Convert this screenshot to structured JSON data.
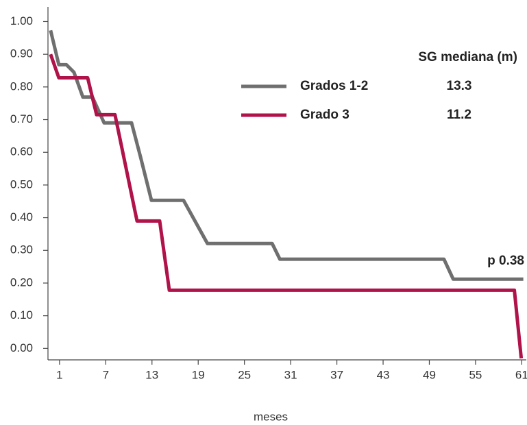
{
  "chart_data": {
    "type": "line",
    "x_label": "meses",
    "legend_title": "SG mediana (m)",
    "annotation": "p 0.38",
    "xlim": [
      -0.5,
      61.5
    ],
    "ylim": [
      -0.035,
      1.045
    ],
    "xticks": [
      1,
      7,
      13,
      19,
      25,
      31,
      37,
      43,
      49,
      55,
      61
    ],
    "yticks": [
      {
        "value": 1.0,
        "label": "1.00"
      },
      {
        "value": 0.9,
        "label": "0.90"
      },
      {
        "value": 0.8,
        "label": "0.80"
      },
      {
        "value": 0.7,
        "label": "0.70"
      },
      {
        "value": 0.6,
        "label": "0.60"
      },
      {
        "value": 0.5,
        "label": "0.50"
      },
      {
        "value": 0.4,
        "label": "0.40"
      },
      {
        "value": 0.3,
        "label": "0.30"
      },
      {
        "value": 0.2,
        "label": "0.20"
      },
      {
        "value": 0.1,
        "label": "0.10"
      },
      {
        "value": 0,
        "label": "0.00"
      }
    ],
    "series": [
      {
        "name": "Grados 1-2",
        "color": "#6f6f6f",
        "median": 13.3,
        "x": [
          -0.16,
          0.91,
          1.89,
          2.87,
          4.03,
          5.27,
          6.79,
          10.35,
          11.5,
          12.93,
          17.1,
          20.2,
          28.6,
          29.6,
          50.9,
          52.1,
          61.2
        ],
        "y": [
          0.973,
          0.868,
          0.868,
          0.845,
          0.769,
          0.769,
          0.69,
          0.69,
          0.587,
          0.453,
          0.453,
          0.321,
          0.321,
          0.273,
          0.273,
          0.212,
          0.212
        ]
      },
      {
        "name": "Grado 3",
        "color": "#b0124a",
        "median": 11.2,
        "x": [
          -0.16,
          0.91,
          4.65,
          5.81,
          8.2,
          11.06,
          14.0,
          15.25,
          60.04,
          60.93
        ],
        "y": [
          0.9,
          0.828,
          0.828,
          0.715,
          0.715,
          0.39,
          0.39,
          0.178,
          0.178,
          -0.03
        ]
      }
    ]
  }
}
